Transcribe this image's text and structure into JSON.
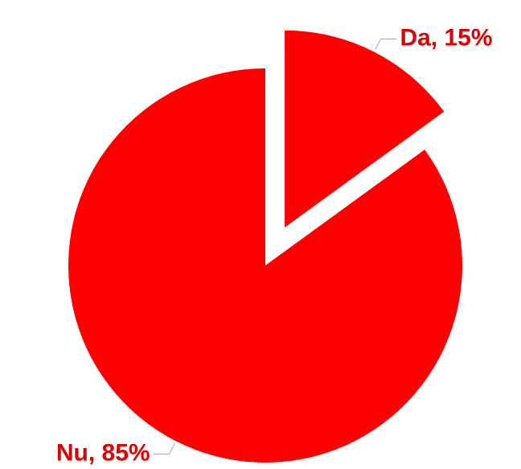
{
  "chart_data": {
    "type": "pie",
    "values": [
      15,
      85
    ],
    "value_labels": [
      "Da, 15%",
      "Nu, 85%"
    ],
    "color": "#ff0000",
    "label_color": "#e00000"
  }
}
